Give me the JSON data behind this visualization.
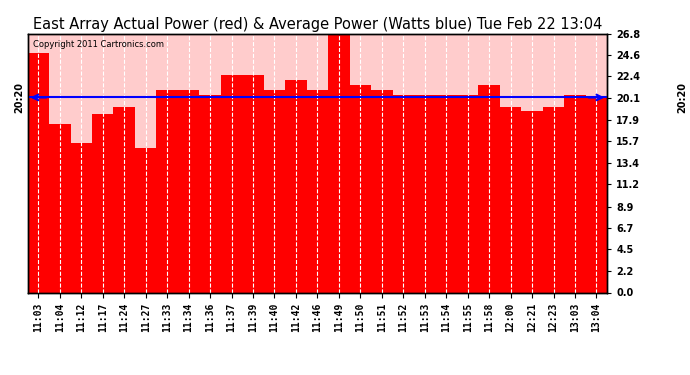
{
  "title": "East Array Actual Power (red) & Average Power (Watts blue) Tue Feb 22 13:04",
  "copyright": "Copyright 2011 Cartronics.com",
  "categories": [
    "11:03",
    "11:04",
    "11:12",
    "11:17",
    "11:24",
    "11:27",
    "11:33",
    "11:34",
    "11:36",
    "11:37",
    "11:39",
    "11:40",
    "11:42",
    "11:46",
    "11:49",
    "11:50",
    "11:51",
    "11:52",
    "11:53",
    "11:54",
    "11:55",
    "11:58",
    "12:00",
    "12:21",
    "12:23",
    "13:03",
    "13:04"
  ],
  "values": [
    24.8,
    17.5,
    15.5,
    18.5,
    19.2,
    15.0,
    21.0,
    21.0,
    20.5,
    22.5,
    22.5,
    21.0,
    22.0,
    21.0,
    26.8,
    21.5,
    21.0,
    20.5,
    20.5,
    20.5,
    20.5,
    21.5,
    19.2,
    18.8,
    19.2,
    20.5,
    20.1
  ],
  "average_value": 20.2,
  "bar_color": "#ff0000",
  "line_color": "#0000ff",
  "background_color": "#ffffff",
  "plot_bg_color": "#ffcccc",
  "grid_color": "#ffffff",
  "ylim": [
    0.0,
    26.8
  ],
  "yticks": [
    0.0,
    2.2,
    4.5,
    6.7,
    8.9,
    11.2,
    13.4,
    15.7,
    17.9,
    20.1,
    22.4,
    24.6,
    26.8
  ],
  "title_fontsize": 10.5,
  "tick_fontsize": 7,
  "avg_label": "20:20",
  "grid_linewidth": 0.8,
  "border_color": "#000000"
}
